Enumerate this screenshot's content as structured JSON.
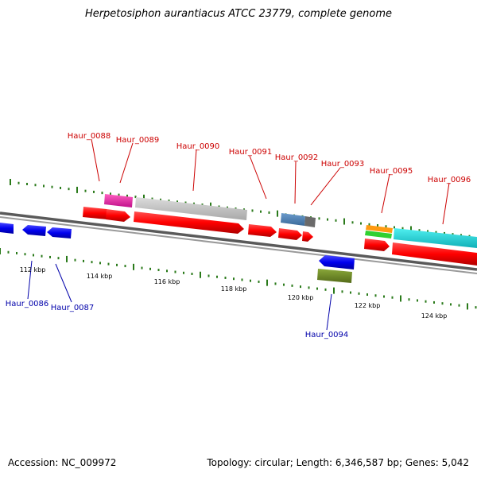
{
  "title": "Herpetosiphon aurantiacus ATCC 23779, complete genome",
  "accession": "Accession: NC_009972",
  "summary": "Topology: circular; Length: 6,346,587 bp; Genes: 5,042",
  "colors": {
    "backbone": "#7a7a7a",
    "forward_gene": "#ff0000",
    "reverse_gene": "#0000ee",
    "tick": "#2a7a1a",
    "forward_label": "#cc0000",
    "reverse_label": "#0000aa"
  },
  "scale_labels": [
    "112 kbp",
    "114 kbp",
    "116 kbp",
    "118 kbp",
    "120 kbp",
    "122 kbp",
    "124 kbp"
  ],
  "forward_gene_labels": [
    "Haur_0088",
    "Haur_0089",
    "Haur_0090",
    "Haur_0091",
    "Haur_0092",
    "Haur_0093",
    "Haur_0095",
    "Haur_0096"
  ],
  "reverse_gene_labels": [
    "Haur_0086",
    "Haur_0087",
    "Haur_0094"
  ]
}
